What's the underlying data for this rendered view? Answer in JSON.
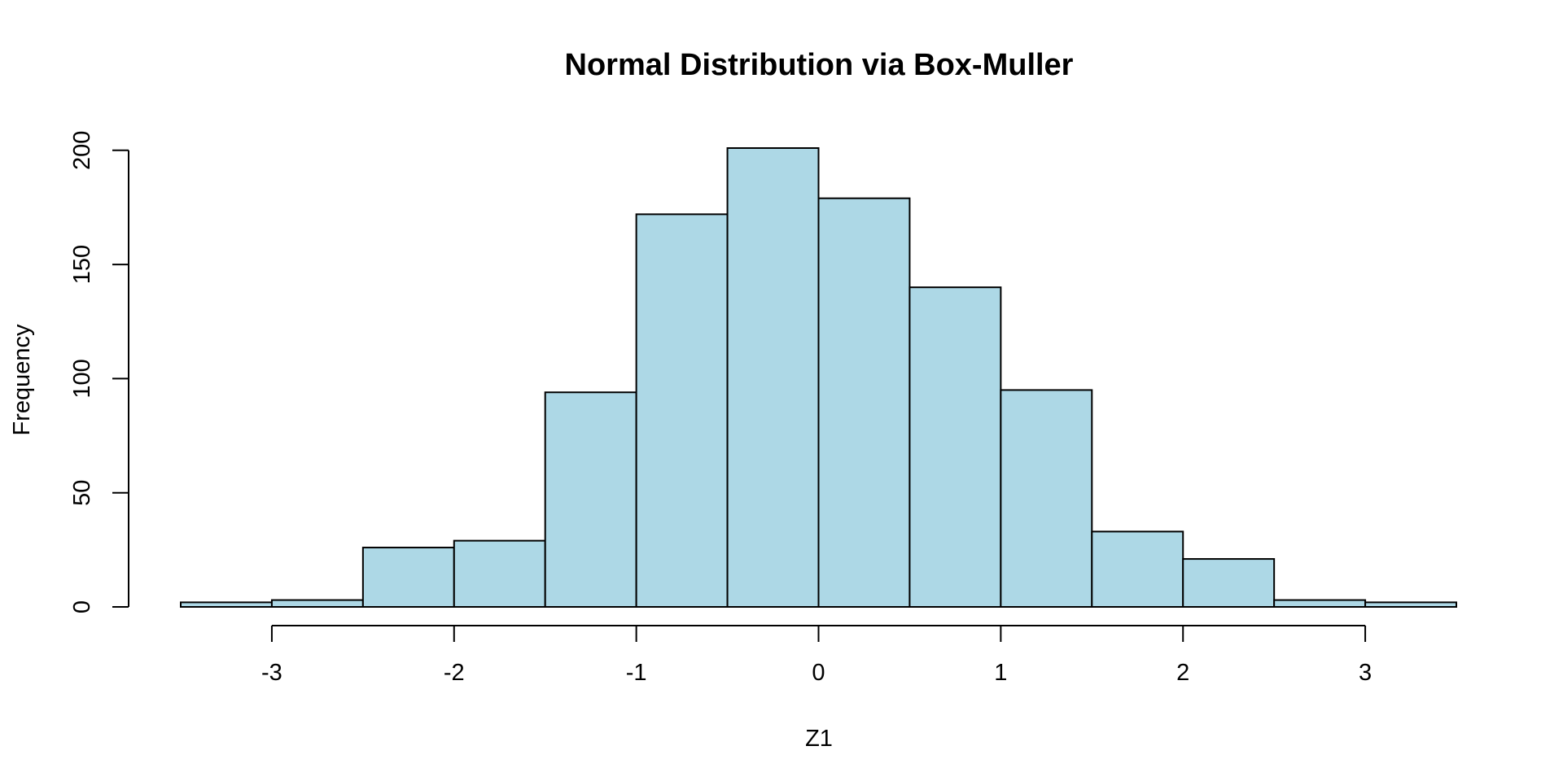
{
  "chart_data": {
    "type": "bar",
    "title": "Normal Distribution via Box-Muller",
    "xlabel": "Z1",
    "ylabel": "Frequency",
    "bar_color": "#add8e6",
    "border_color": "#000000",
    "bins": [
      {
        "from": -3.5,
        "to": -3.0,
        "value": 2
      },
      {
        "from": -3.0,
        "to": -2.5,
        "value": 3
      },
      {
        "from": -2.5,
        "to": -2.0,
        "value": 26
      },
      {
        "from": -2.0,
        "to": -1.5,
        "value": 29
      },
      {
        "from": -1.5,
        "to": -1.0,
        "value": 94
      },
      {
        "from": -1.0,
        "to": -0.5,
        "value": 172
      },
      {
        "from": -0.5,
        "to": 0.0,
        "value": 201
      },
      {
        "from": 0.0,
        "to": 0.5,
        "value": 179
      },
      {
        "from": 0.5,
        "to": 1.0,
        "value": 140
      },
      {
        "from": 1.0,
        "to": 1.5,
        "value": 95
      },
      {
        "from": 1.5,
        "to": 2.0,
        "value": 33
      },
      {
        "from": 2.0,
        "to": 2.5,
        "value": 21
      },
      {
        "from": 2.5,
        "to": 3.0,
        "value": 3
      },
      {
        "from": 3.0,
        "to": 3.5,
        "value": 2
      }
    ],
    "xlim": [
      -3.5,
      3.5
    ],
    "ylim": [
      0,
      201
    ],
    "x_ticks": [
      {
        "value": -3,
        "label": "-3"
      },
      {
        "value": -2,
        "label": "-2"
      },
      {
        "value": -1,
        "label": "-1"
      },
      {
        "value": 0,
        "label": "0"
      },
      {
        "value": 1,
        "label": "1"
      },
      {
        "value": 2,
        "label": "2"
      },
      {
        "value": 3,
        "label": "3"
      }
    ],
    "y_ticks": [
      {
        "value": 0,
        "label": "0"
      },
      {
        "value": 50,
        "label": "50"
      },
      {
        "value": 100,
        "label": "100"
      },
      {
        "value": 150,
        "label": "150"
      },
      {
        "value": 200,
        "label": "200"
      }
    ],
    "grid": false,
    "legend": "none"
  }
}
